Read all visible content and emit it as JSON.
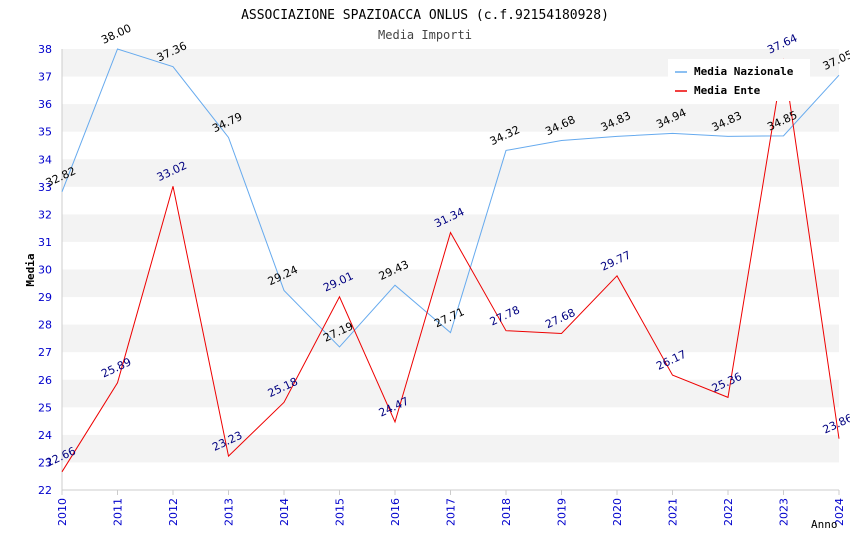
{
  "chart_data": {
    "type": "line",
    "title": "ASSOCIAZIONE SPAZIOACCA ONLUS (c.f.92154180928)",
    "subtitle": "Media Importi",
    "xlabel": "Anno",
    "ylabel": "Media",
    "ylim": [
      22,
      38
    ],
    "y_ticks": [
      "22",
      "23",
      "24",
      "25",
      "26",
      "27",
      "28",
      "29",
      "30",
      "31",
      "32",
      "33",
      "34",
      "35",
      "36",
      "37",
      "38"
    ],
    "x": [
      "2010",
      "2011",
      "2012",
      "2013",
      "2014",
      "2015",
      "2016",
      "2017",
      "2018",
      "2019",
      "2020",
      "2021",
      "2022",
      "2023",
      "2024"
    ],
    "legend_position": "top-right",
    "series": [
      {
        "name": "Media Nazionale",
        "color": "#66aaee",
        "label_color": "#000000",
        "values": [
          32.82,
          38.0,
          37.36,
          34.79,
          29.24,
          27.19,
          29.43,
          27.71,
          34.32,
          34.68,
          34.83,
          34.94,
          34.83,
          34.85,
          37.05
        ],
        "labels": [
          "32.82",
          "38.00",
          "37.36",
          "34.79",
          "29.24",
          "27.19",
          "29.43",
          "27.71",
          "34.32",
          "34.68",
          "34.83",
          "34.94",
          "34.83",
          "34.85",
          "37.05"
        ]
      },
      {
        "name": "Media Ente",
        "color": "#ee0000",
        "label_color": "#000080",
        "values": [
          22.66,
          25.89,
          33.02,
          23.23,
          25.18,
          29.01,
          24.47,
          31.34,
          27.78,
          27.68,
          29.77,
          26.17,
          25.36,
          37.64,
          23.86
        ],
        "labels": [
          "22.66",
          "25.89",
          "33.02",
          "23.23",
          "25.18",
          "29.01",
          "24.47",
          "31.34",
          "27.78",
          "27.68",
          "29.77",
          "26.17",
          "25.36",
          "37.64",
          "23.86"
        ]
      }
    ],
    "colors": {
      "band": "#f3f3f3",
      "gridline": "#ffffff",
      "axis": "#cccccc",
      "tick_label": "#0000cc",
      "title": "#000000"
    }
  }
}
